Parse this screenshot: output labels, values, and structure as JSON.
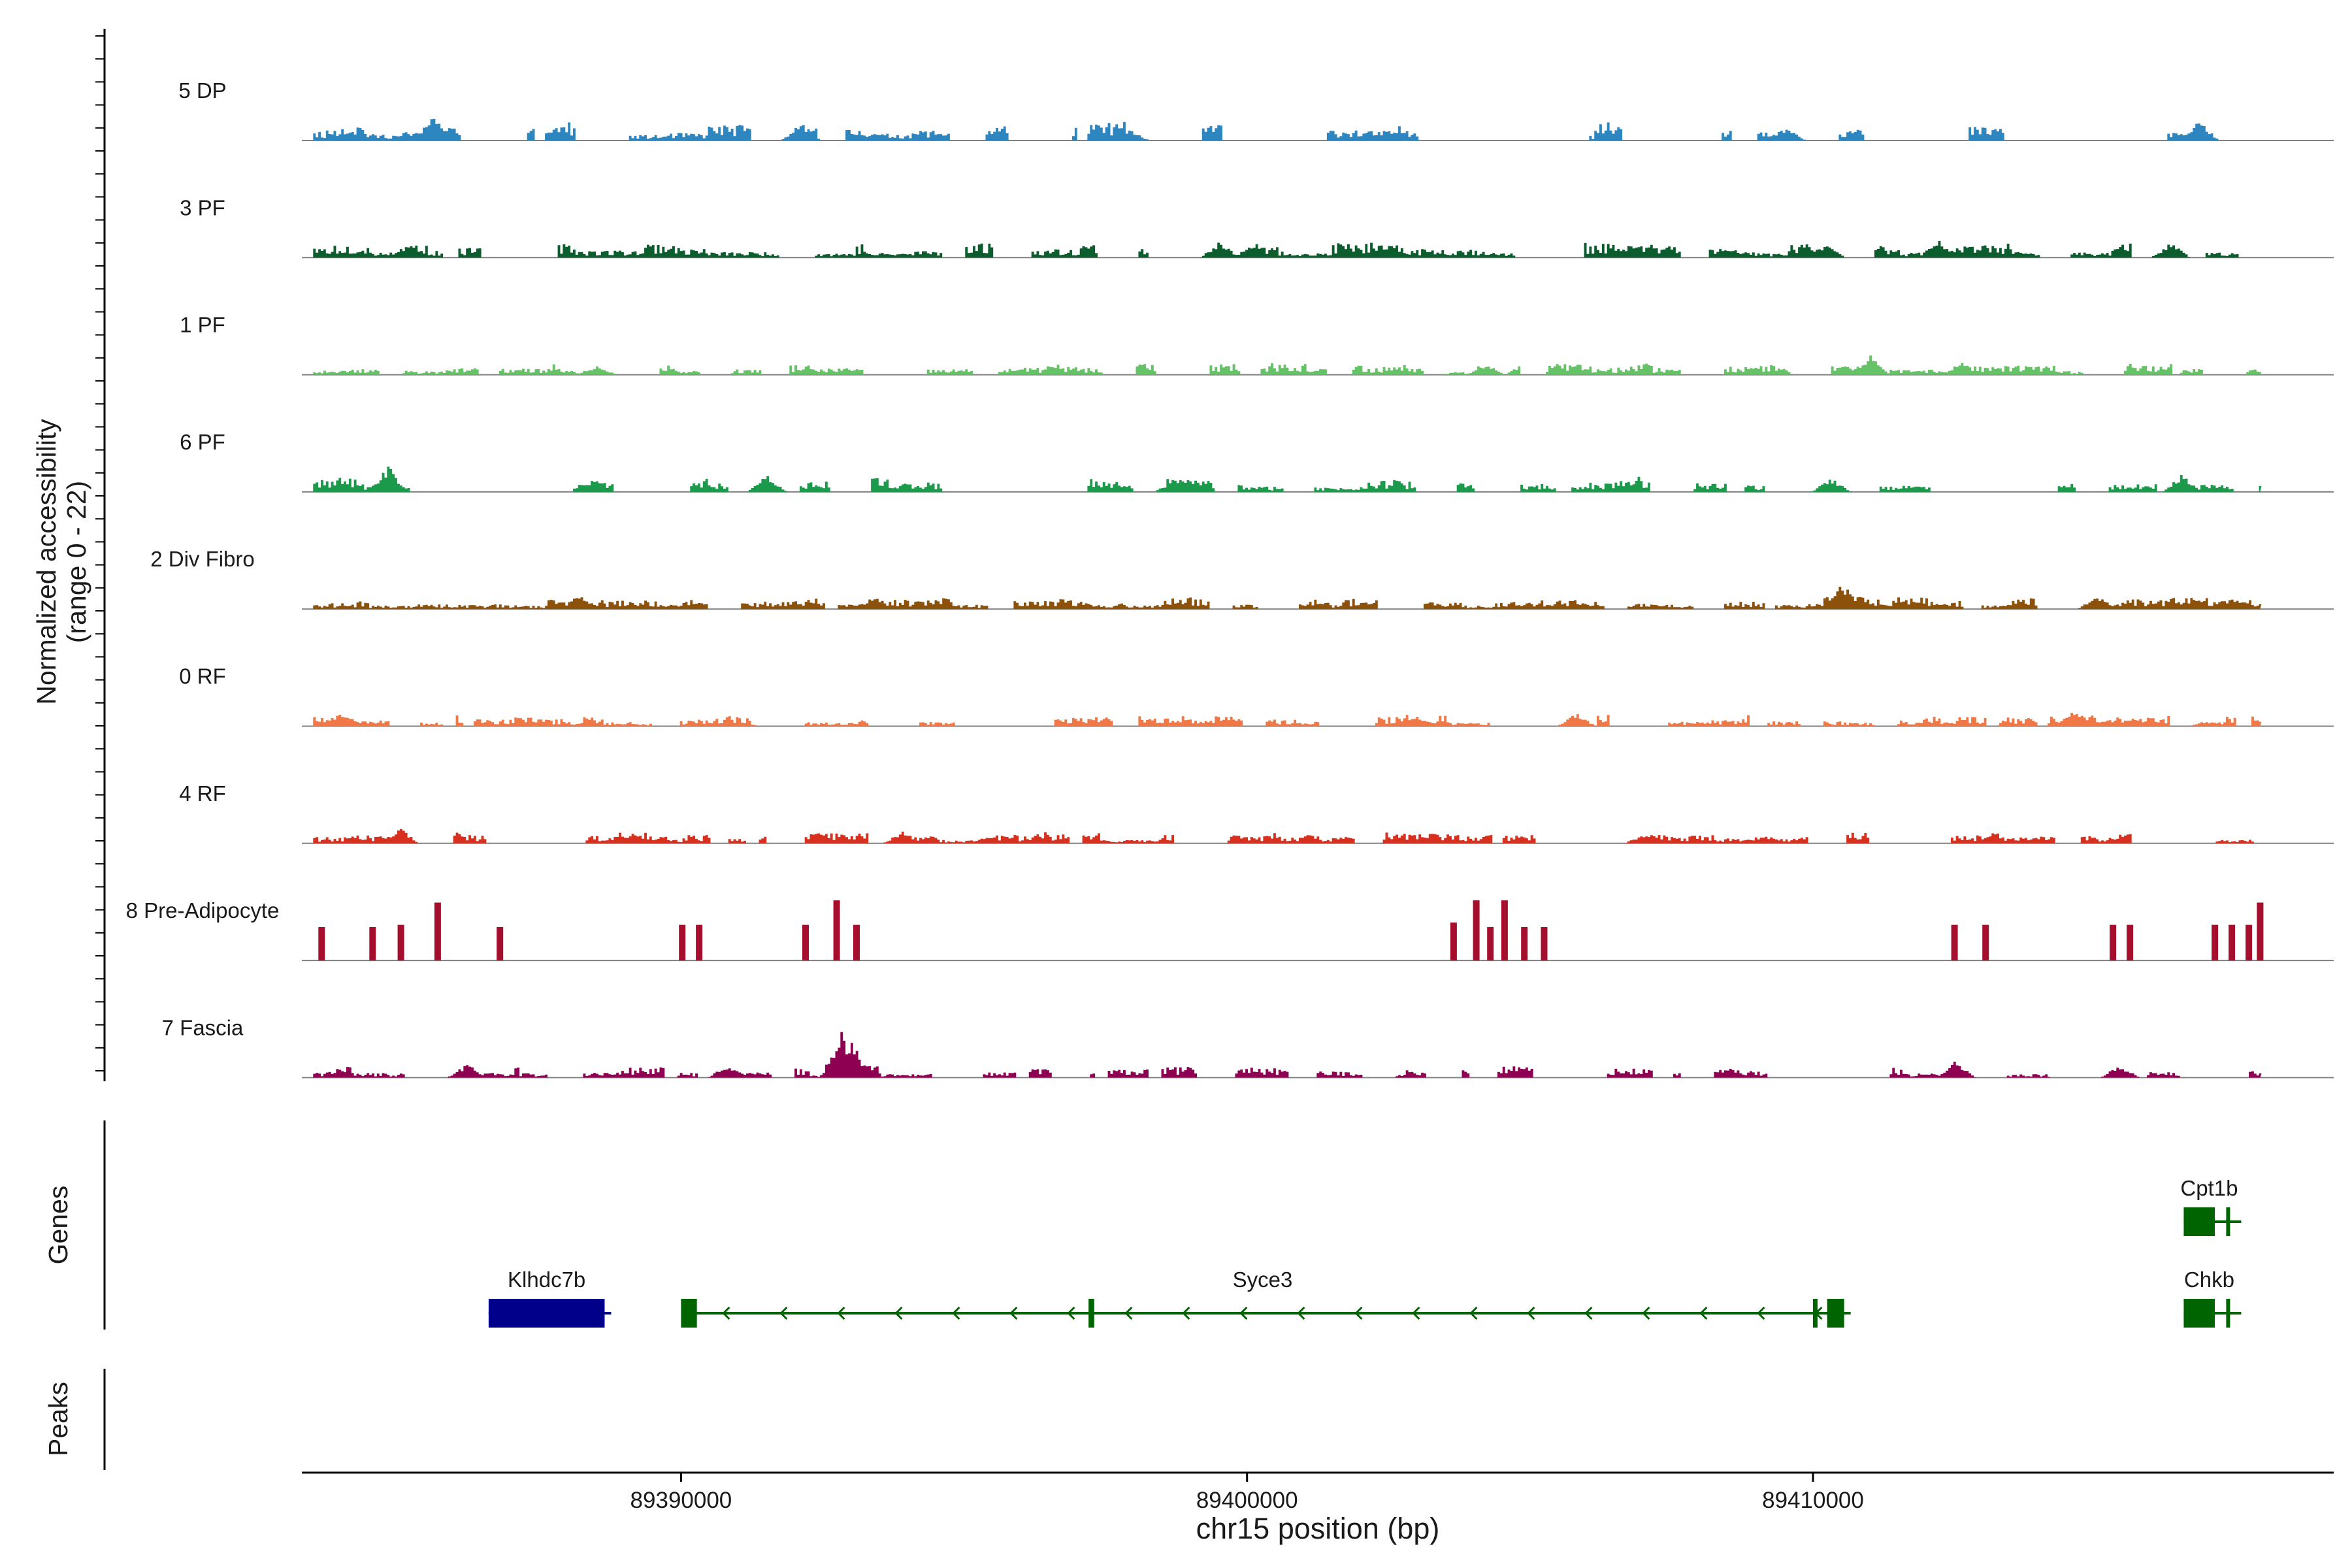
{
  "chart_data": {
    "type": "area",
    "title": "",
    "xlabel": "chr15 position (bp)",
    "ylabel_line1": "Normalized accessibility",
    "ylabel_line2": "(range 0 - 22)",
    "ylim": [
      0,
      22
    ],
    "xlim": [
      89383300,
      89419200
    ],
    "x_ticks": [
      89390000,
      89400000,
      89410000
    ],
    "x_tick_labels": [
      "89390000",
      "89400000",
      "89410000"
    ],
    "genes_label": "Genes",
    "peaks_label": "Peaks",
    "colors": {
      "5 DP": "#2E86C1",
      "3 PF": "#0B5D2E",
      "1 PF": "#66C266",
      "6 PF": "#1A9A4A",
      "2 Div Fibro": "#8C510A",
      "0 RF": "#F07846",
      "4 RF": "#D7301F",
      "8 Pre-Adipocyte": "#A50F2D",
      "7 Fascia": "#8E0152",
      "gene_plus": "#00008B",
      "gene_minus": "#006400",
      "axis": "#000000",
      "baseline": "#808080"
    },
    "series": [
      {
        "name": "5 DP",
        "seed": 11,
        "density": 0.42,
        "scale": 3.2,
        "peaks": [
          [
            89385600,
            5.5
          ],
          [
            89392100,
            4.0
          ],
          [
            89416800,
            4.5
          ],
          [
            89409500,
            3.0
          ],
          [
            89397900,
            2.5
          ]
        ]
      },
      {
        "name": "3 PF",
        "seed": 23,
        "density": 0.62,
        "scale": 2.6,
        "peaks": [
          [
            89385200,
            3.8
          ],
          [
            89399500,
            3.8
          ],
          [
            89400100,
            3.5
          ],
          [
            89406800,
            3.5
          ],
          [
            89412200,
            4.2
          ],
          [
            89410200,
            3.2
          ],
          [
            89416300,
            3.5
          ]
        ]
      },
      {
        "name": "1 PF",
        "seed": 37,
        "density": 0.7,
        "scale": 2.0,
        "peaks": [
          [
            89411000,
            4.5
          ],
          [
            89412600,
            3.0
          ],
          [
            89388500,
            2.0
          ],
          [
            89404200,
            2.2
          ]
        ]
      },
      {
        "name": "6 PF",
        "seed": 41,
        "density": 0.52,
        "scale": 2.6,
        "peaks": [
          [
            89384800,
            6.0
          ],
          [
            89391500,
            4.0
          ],
          [
            89398700,
            3.0
          ],
          [
            89416500,
            4.0
          ],
          [
            89410300,
            3.2
          ]
        ]
      },
      {
        "name": "2 Div Fibro",
        "seed": 53,
        "density": 0.7,
        "scale": 2.2,
        "peaks": [
          [
            89410500,
            6.0
          ],
          [
            89393400,
            3.0
          ],
          [
            89388200,
            3.2
          ],
          [
            89415000,
            3.0
          ]
        ]
      },
      {
        "name": "0 RF",
        "seed": 67,
        "density": 0.72,
        "scale": 2.0,
        "peaks": [
          [
            89414600,
            3.8
          ],
          [
            89405800,
            3.0
          ],
          [
            89384000,
            3.2
          ],
          [
            89403000,
            2.4
          ]
        ]
      },
      {
        "name": "4 RF",
        "seed": 71,
        "density": 0.55,
        "scale": 1.9,
        "peaks": [
          [
            89385000,
            3.6
          ],
          [
            89393900,
            2.8
          ],
          [
            89407000,
            2.2
          ]
        ]
      },
      {
        "name": "8 Pre-Adipocyte",
        "seed": 83,
        "density": 0.0,
        "scale": 0,
        "peaks": [
          [
            89383650,
            7.5
          ],
          [
            89384550,
            7.5
          ],
          [
            89385050,
            8.0
          ],
          [
            89385700,
            13.0
          ],
          [
            89386800,
            7.5
          ],
          [
            89390020,
            8.0
          ],
          [
            89390320,
            8.0
          ],
          [
            89392200,
            8.0
          ],
          [
            89392750,
            13.5
          ],
          [
            89393100,
            8.0
          ],
          [
            89403650,
            8.5
          ],
          [
            89404050,
            13.5
          ],
          [
            89404300,
            7.5
          ],
          [
            89404550,
            13.5
          ],
          [
            89404900,
            7.5
          ],
          [
            89405250,
            7.5
          ],
          [
            89412500,
            8.0
          ],
          [
            89413050,
            8.0
          ],
          [
            89415300,
            8.0
          ],
          [
            89415600,
            8.0
          ],
          [
            89417100,
            8.0
          ],
          [
            89417400,
            8.0
          ],
          [
            89417700,
            8.0
          ],
          [
            89417900,
            13.0
          ]
        ]
      },
      {
        "name": "7 Fascia",
        "seed": 97,
        "density": 0.62,
        "scale": 2.0,
        "peaks": [
          [
            89392800,
            11.0
          ],
          [
            89393000,
            8.0
          ],
          [
            89386200,
            3.2
          ],
          [
            89412500,
            3.8
          ],
          [
            89415400,
            3.0
          ],
          [
            89390800,
            3.0
          ]
        ]
      }
    ],
    "genes": [
      {
        "name": "Klhdc7b",
        "start": 89386600,
        "end": 89388650,
        "strand": "+",
        "row": 2,
        "exons": [
          [
            89386600,
            89388650
          ]
        ]
      },
      {
        "name": "Syce3",
        "start": 89390000,
        "end": 89410550,
        "strand": "-",
        "row": 2,
        "exons": [
          [
            89390000,
            89390280
          ],
          [
            89397200,
            89397300
          ],
          [
            89410000,
            89410080
          ],
          [
            89410250,
            89410550
          ]
        ]
      },
      {
        "name": "Cpt1b",
        "start": 89416550,
        "end": 89417450,
        "strand": "-",
        "row": 1,
        "exons": [
          [
            89416550,
            89417100
          ],
          [
            89417300,
            89417360
          ]
        ]
      },
      {
        "name": "Chkb",
        "start": 89416550,
        "end": 89417450,
        "strand": "-",
        "row": 2,
        "exons": [
          [
            89416550,
            89417100
          ],
          [
            89417300,
            89417360
          ]
        ]
      }
    ]
  }
}
